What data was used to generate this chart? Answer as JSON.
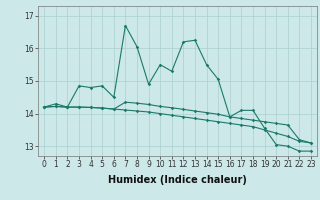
{
  "xlabel": "Humidex (Indice chaleur)",
  "background_color": "#cce8e8",
  "grid_color": "#aacfcf",
  "line_color": "#1a7a6a",
  "x_values": [
    0,
    1,
    2,
    3,
    4,
    5,
    6,
    7,
    8,
    9,
    10,
    11,
    12,
    13,
    14,
    15,
    16,
    17,
    18,
    19,
    20,
    21,
    22,
    23
  ],
  "series1": [
    14.2,
    14.3,
    14.2,
    14.85,
    14.8,
    14.85,
    14.5,
    16.7,
    16.05,
    14.9,
    15.5,
    15.3,
    16.2,
    16.25,
    15.5,
    15.05,
    13.9,
    14.1,
    14.1,
    13.55,
    13.05,
    13.0,
    12.85,
    12.85
  ],
  "series2": [
    14.2,
    14.22,
    14.2,
    14.2,
    14.19,
    14.17,
    14.14,
    14.11,
    14.08,
    14.05,
    14.0,
    13.95,
    13.9,
    13.85,
    13.8,
    13.75,
    13.7,
    13.65,
    13.6,
    13.5,
    13.4,
    13.3,
    13.15,
    13.1
  ],
  "series3": [
    14.2,
    14.22,
    14.2,
    14.2,
    14.19,
    14.17,
    14.14,
    14.35,
    14.32,
    14.28,
    14.22,
    14.18,
    14.13,
    14.08,
    14.03,
    13.98,
    13.9,
    13.85,
    13.8,
    13.75,
    13.7,
    13.65,
    13.2,
    13.1
  ],
  "ylim_min": 12.7,
  "ylim_max": 17.3,
  "yticks": [
    13,
    14,
    15,
    16,
    17
  ],
  "xticks": [
    0,
    1,
    2,
    3,
    4,
    5,
    6,
    7,
    8,
    9,
    10,
    11,
    12,
    13,
    14,
    15,
    16,
    17,
    18,
    19,
    20,
    21,
    22,
    23
  ],
  "tick_fontsize": 5.5,
  "xlabel_fontsize": 7,
  "marker": "D",
  "marker_size": 1.8,
  "linewidth": 0.8
}
